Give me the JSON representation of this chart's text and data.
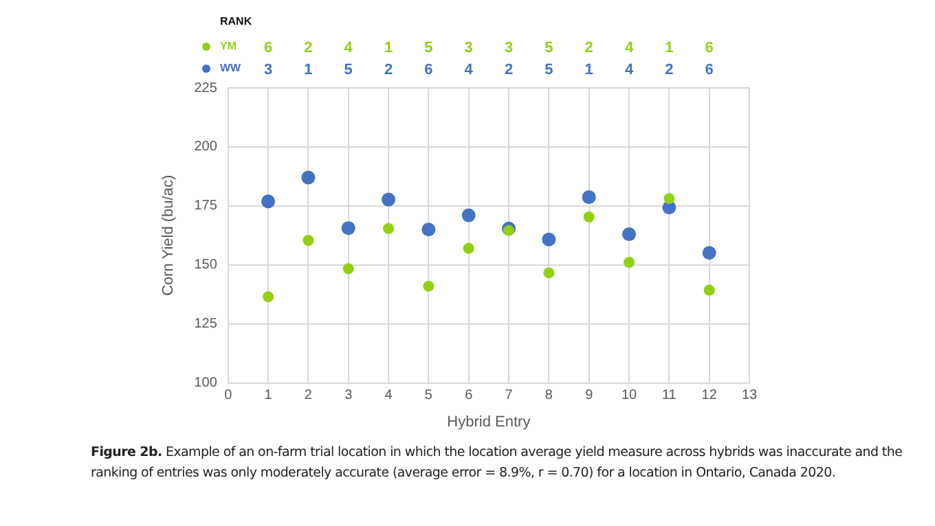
{
  "chart_data": {
    "type": "scatter",
    "xlabel": "Hybrid Entry",
    "ylabel": "Corn Yield (bu/ac)",
    "x": [
      1,
      2,
      3,
      4,
      5,
      6,
      7,
      8,
      9,
      10,
      11,
      12
    ],
    "series": [
      {
        "name": "YM",
        "color": "#92d014",
        "values": [
          136.5,
          160.4,
          148.4,
          165.4,
          141,
          157,
          164.6,
          146.6,
          170.3,
          151.1,
          178.1,
          139.3
        ]
      },
      {
        "name": "WW",
        "color": "#4472c4",
        "values": [
          176.9,
          187,
          165.6,
          177.7,
          165,
          171,
          165.4,
          160.8,
          178.7,
          163,
          174.3,
          155.1
        ]
      }
    ],
    "xlim": [
      0,
      13
    ],
    "xticks": [
      0,
      1,
      2,
      3,
      4,
      5,
      6,
      7,
      8,
      9,
      10,
      11,
      12,
      13
    ],
    "ylim": [
      100,
      225
    ],
    "yticks": [
      100,
      125,
      150,
      175,
      200,
      225
    ],
    "grid": true,
    "legend": "top left",
    "marker": "circle",
    "legend_title": "RANK",
    "annotations": [
      "6",
      "2",
      "4",
      "1",
      "5",
      "3",
      "3",
      "5",
      "2",
      "4",
      "1",
      "6",
      "3",
      "1",
      "5",
      "2",
      "6",
      "4",
      "2",
      "5",
      "1",
      "4",
      "2",
      "6",
      "Figure 2b. Example of an on-farm trial location in which the location average yield measure across hybrids was inaccurate and the ranking of entries was only moderately accurate (average error = 8.9%, r = 0.70) for a location in Ontario, Canada 2020."
    ]
  }
}
